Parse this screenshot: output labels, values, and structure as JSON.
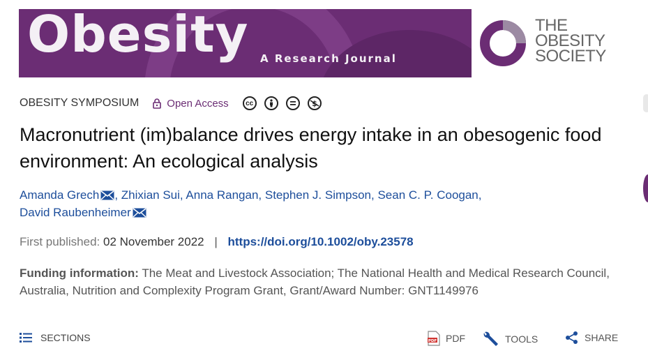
{
  "banner": {
    "journal_name": "Obesity",
    "tagline": "A Research Journal"
  },
  "society": {
    "line1": "THE",
    "line2": "OBESITY",
    "line3": "SOCIETY"
  },
  "meta": {
    "section": "OBESITY SYMPOSIUM",
    "access": "Open Access",
    "licenses": [
      "cc-icon",
      "by-icon",
      "nd-icon",
      "nc-icon"
    ]
  },
  "article": {
    "title": "Macronutrient (im)balance drives energy intake in an obesogenic food environment: An ecological analysis",
    "authors": [
      {
        "name": "Amanda Grech",
        "email": true
      },
      {
        "name": "Zhixian Sui",
        "email": false
      },
      {
        "name": "Anna Rangan",
        "email": false
      },
      {
        "name": "Stephen J. Simpson",
        "email": false
      },
      {
        "name": "Sean C. P. Coogan",
        "email": false
      },
      {
        "name": "David Raubenheimer",
        "email": true
      }
    ],
    "published_label": "First published:",
    "published_date": "02 November 2022",
    "separator": "|",
    "doi": "https://doi.org/10.1002/oby.23578",
    "funding_label": "Funding information:",
    "funding_text": "The Meat and Livestock Association; The National Health and Medical Research Council, Australia, Nutrition and Complexity Program Grant, Grant/Award Number: GNT1149976"
  },
  "toolbar": {
    "sections_label": "SECTIONS",
    "pdf_label": "PDF",
    "tools_label": "TOOLS",
    "share_label": "SHARE"
  },
  "colors": {
    "brand_purple": "#6b2d74",
    "link_blue": "#1d4e9b"
  }
}
